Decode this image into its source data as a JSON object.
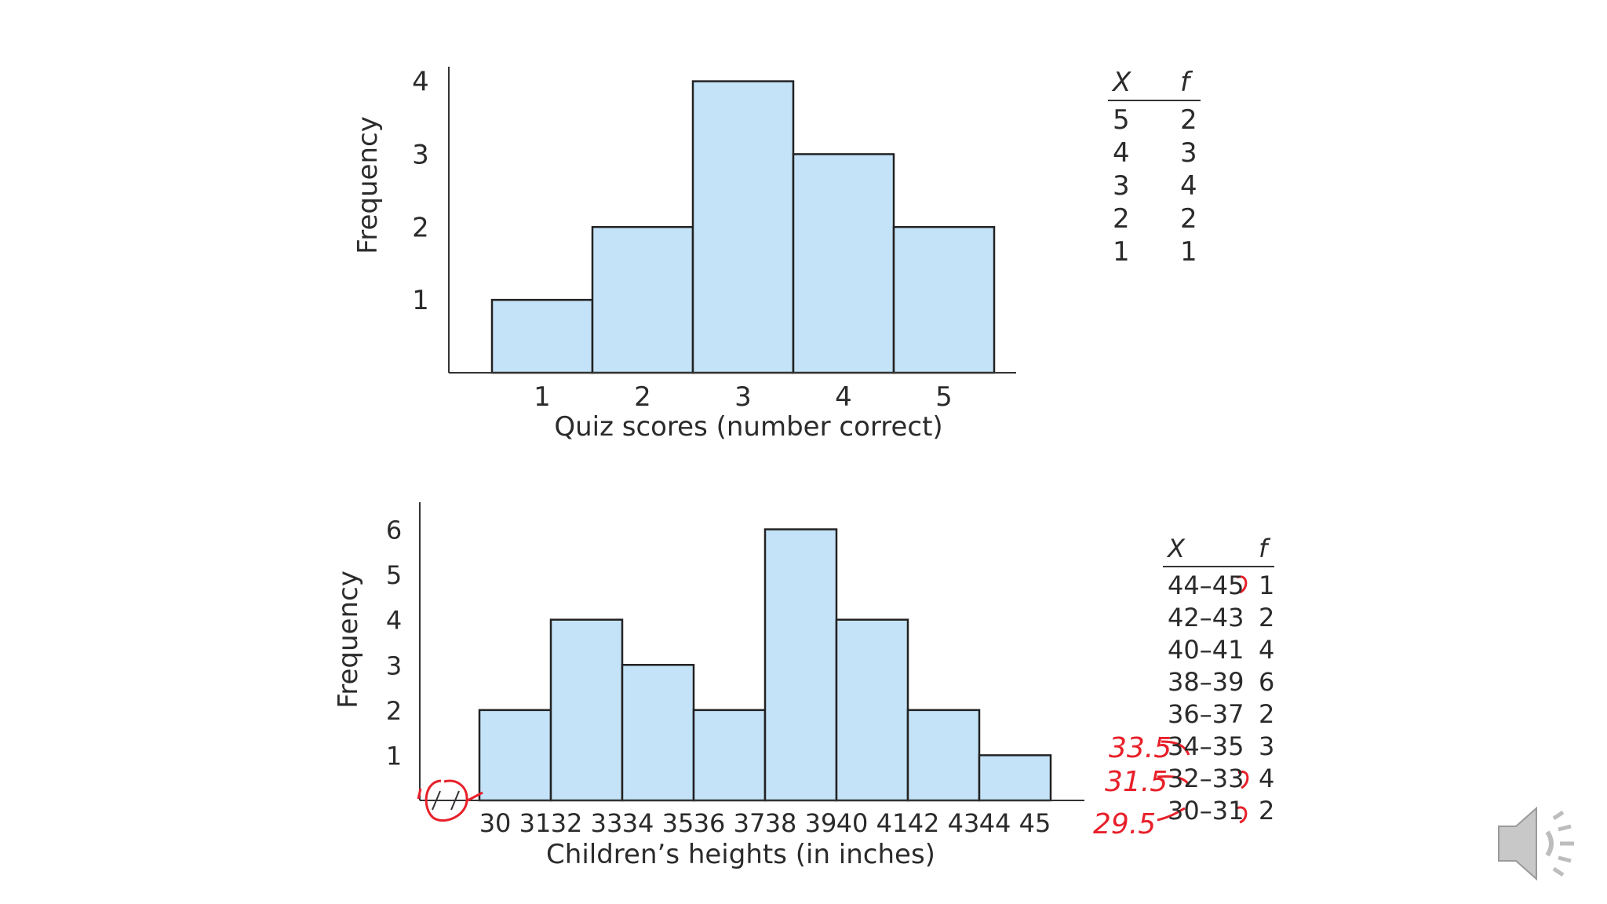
{
  "chart_data": [
    {
      "type": "bar",
      "categories": [
        "1",
        "2",
        "3",
        "4",
        "5"
      ],
      "values": [
        1,
        2,
        4,
        3,
        2
      ],
      "xlabel": "Quiz scores (number correct)",
      "ylabel": "Frequency",
      "yticks": [
        "1",
        "2",
        "3",
        "4"
      ],
      "ylim": [
        0,
        4.2
      ],
      "bar_color": "#c4e3f8",
      "table": {
        "headers": [
          "X",
          "f"
        ],
        "rows": [
          [
            "5",
            "2"
          ],
          [
            "4",
            "3"
          ],
          [
            "3",
            "4"
          ],
          [
            "2",
            "2"
          ],
          [
            "1",
            "1"
          ]
        ]
      }
    },
    {
      "type": "bar",
      "categories": [
        "30 31",
        "32 33",
        "34 35",
        "36 37",
        "38 39",
        "40 41",
        "42 43",
        "44 45"
      ],
      "values": [
        2,
        4,
        3,
        2,
        6,
        4,
        2,
        1
      ],
      "xlabel": "Children’s heights (in inches)",
      "ylabel": "Frequency",
      "yticks": [
        "1",
        "2",
        "3",
        "4",
        "5",
        "6"
      ],
      "ylim": [
        0,
        6.6
      ],
      "bar_color": "#c4e3f8",
      "table": {
        "headers": [
          "X",
          "f"
        ],
        "rows": [
          [
            "44–45",
            "1"
          ],
          [
            "42–43",
            "2"
          ],
          [
            "40–41",
            "4"
          ],
          [
            "38–39",
            "6"
          ],
          [
            "36–37",
            "2"
          ],
          [
            "34–35",
            "3"
          ],
          [
            "32–33",
            "4"
          ],
          [
            "30–31",
            "2"
          ]
        ]
      },
      "annotations": [
        "33.5",
        "31.5",
        "29.5"
      ]
    }
  ],
  "colors": {
    "ink": "#2b2b2b",
    "bar_fill": "#c4e3f8",
    "handwriting": "#e8202a"
  },
  "speaker_icon": "speaker-volume-icon"
}
